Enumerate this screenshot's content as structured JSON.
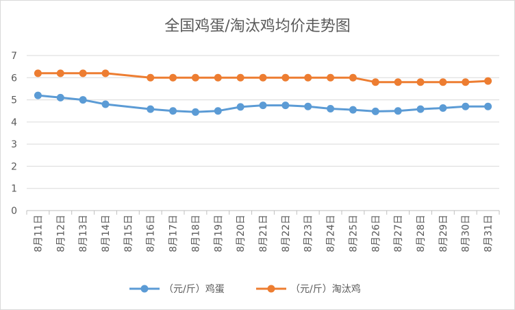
{
  "chart_data": {
    "type": "line",
    "title": "全国鸡蛋/淘汰鸡均价走势图",
    "categories": [
      "8月11日",
      "8月12日",
      "8月13日",
      "8月14日",
      "8月15日",
      "8月16日",
      "8月17日",
      "8月18日",
      "8月19日",
      "8月20日",
      "8月21日",
      "8月22日",
      "8月23日",
      "8月24日",
      "8月25日",
      "8月26日",
      "8月27日",
      "8月28日",
      "8月29日",
      "8月30日",
      "8月31日"
    ],
    "series": [
      {
        "name": "（元/斤）鸡蛋",
        "color": "#5b9bd5",
        "values": [
          5.2,
          5.1,
          5.0,
          4.8,
          null,
          4.58,
          4.5,
          4.45,
          4.5,
          4.68,
          4.75,
          4.75,
          4.7,
          4.6,
          4.55,
          4.48,
          4.5,
          4.58,
          4.63,
          4.7,
          4.7
        ]
      },
      {
        "name": "（元/斤）淘汰鸡",
        "color": "#ed7d31",
        "values": [
          6.2,
          6.2,
          6.2,
          6.2,
          null,
          6.0,
          6.0,
          6.0,
          6.0,
          6.0,
          6.0,
          6.0,
          6.0,
          6.0,
          6.0,
          5.8,
          5.8,
          5.8,
          5.8,
          5.8,
          5.85
        ]
      }
    ],
    "yticks": [
      "0",
      "1",
      "2",
      "3",
      "4",
      "5",
      "6",
      "7"
    ],
    "ylim": [
      0,
      7
    ],
    "grid": true,
    "legend": "bottom",
    "xlabel": "",
    "ylabel": ""
  }
}
